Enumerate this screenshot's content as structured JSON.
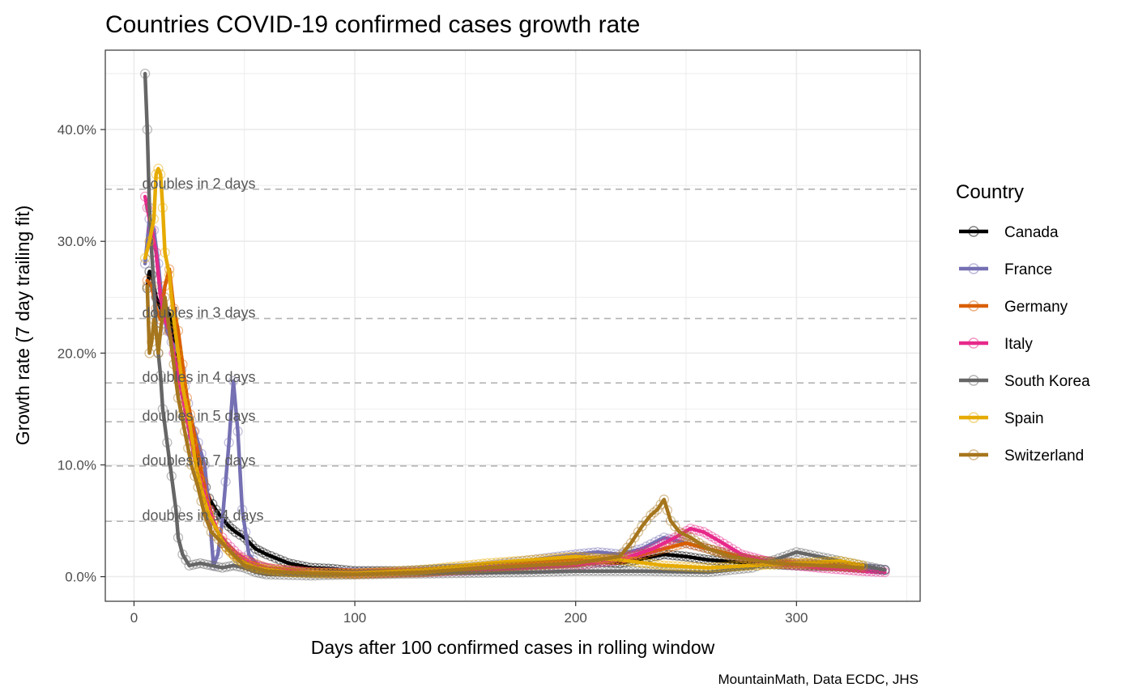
{
  "chart_data": {
    "type": "line",
    "title": "Countries COVID-19 confirmed cases growth rate",
    "xlabel": "Days after 100 confirmed cases in rolling window",
    "ylabel": "Growth rate (7 day trailing fit)",
    "caption": "MountainMath, Data ECDC, JHS",
    "xlim": [
      -13,
      356
    ],
    "ylim": [
      -0.022,
      0.471
    ],
    "x_ticks": [
      0,
      100,
      200,
      300
    ],
    "x_tick_labels": [
      "0",
      "100",
      "200",
      "300"
    ],
    "y_ticks": [
      0,
      0.1,
      0.2,
      0.3,
      0.4
    ],
    "y_tick_labels": [
      "0.0%",
      "10.0%",
      "20.0%",
      "30.0%",
      "40.0%"
    ],
    "grid": true,
    "legend": {
      "title": "Country",
      "position": "right"
    },
    "reference_lines": [
      {
        "label": "doubles in 2 days",
        "y": 0.3466
      },
      {
        "label": "doubles in 3 days",
        "y": 0.231
      },
      {
        "label": "doubles in 4 days",
        "y": 0.1733
      },
      {
        "label": "doubles in 5 days",
        "y": 0.1386
      },
      {
        "label": "doubles in 7 days",
        "y": 0.099
      },
      {
        "label": "doubles in 14 days",
        "y": 0.0495
      }
    ],
    "series": [
      {
        "name": "Canada",
        "color": "#000000",
        "points": [
          [
            6,
            0.258
          ],
          [
            7,
            0.273
          ],
          [
            8,
            0.27
          ],
          [
            10,
            0.25
          ],
          [
            12,
            0.24
          ],
          [
            14,
            0.238
          ],
          [
            16,
            0.235
          ],
          [
            18,
            0.21
          ],
          [
            20,
            0.18
          ],
          [
            22,
            0.16
          ],
          [
            25,
            0.14
          ],
          [
            28,
            0.11
          ],
          [
            31,
            0.09
          ],
          [
            34,
            0.07
          ],
          [
            37,
            0.06
          ],
          [
            40,
            0.052
          ],
          [
            43,
            0.045
          ],
          [
            46,
            0.04
          ],
          [
            50,
            0.035
          ],
          [
            55,
            0.025
          ],
          [
            60,
            0.02
          ],
          [
            70,
            0.012
          ],
          [
            80,
            0.008
          ],
          [
            90,
            0.007
          ],
          [
            100,
            0.005
          ],
          [
            120,
            0.005
          ],
          [
            140,
            0.007
          ],
          [
            160,
            0.008
          ],
          [
            180,
            0.012
          ],
          [
            200,
            0.015
          ],
          [
            220,
            0.012
          ],
          [
            240,
            0.02
          ],
          [
            250,
            0.018
          ],
          [
            260,
            0.015
          ],
          [
            280,
            0.012
          ],
          [
            300,
            0.01
          ],
          [
            320,
            0.009
          ],
          [
            340,
            0.006
          ]
        ]
      },
      {
        "name": "France",
        "color": "#7570b3",
        "points": [
          [
            5,
            0.28
          ],
          [
            7,
            0.32
          ],
          [
            9,
            0.31
          ],
          [
            11,
            0.28
          ],
          [
            13,
            0.24
          ],
          [
            15,
            0.22
          ],
          [
            17,
            0.21
          ],
          [
            20,
            0.2
          ],
          [
            23,
            0.17
          ],
          [
            26,
            0.14
          ],
          [
            29,
            0.12
          ],
          [
            32,
            0.1
          ],
          [
            34,
            0.06
          ],
          [
            36,
            0.01
          ],
          [
            38,
            0.02
          ],
          [
            40,
            0.05
          ],
          [
            43,
            0.12
          ],
          [
            45,
            0.175
          ],
          [
            47,
            0.13
          ],
          [
            49,
            0.06
          ],
          [
            52,
            0.02
          ],
          [
            56,
            0.01
          ],
          [
            65,
            0.005
          ],
          [
            80,
            0.004
          ],
          [
            100,
            0.004
          ],
          [
            130,
            0.005
          ],
          [
            160,
            0.01
          ],
          [
            180,
            0.015
          ],
          [
            200,
            0.02
          ],
          [
            210,
            0.022
          ],
          [
            220,
            0.02
          ],
          [
            230,
            0.025
          ],
          [
            240,
            0.035
          ],
          [
            250,
            0.03
          ],
          [
            260,
            0.025
          ],
          [
            280,
            0.015
          ],
          [
            300,
            0.012
          ],
          [
            320,
            0.01
          ],
          [
            340,
            0.006
          ]
        ]
      },
      {
        "name": "Germany",
        "color": "#d95f02",
        "points": [
          [
            6,
            0.265
          ],
          [
            8,
            0.26
          ],
          [
            10,
            0.24
          ],
          [
            12,
            0.23
          ],
          [
            14,
            0.26
          ],
          [
            16,
            0.275
          ],
          [
            18,
            0.24
          ],
          [
            20,
            0.22
          ],
          [
            22,
            0.19
          ],
          [
            24,
            0.16
          ],
          [
            27,
            0.13
          ],
          [
            30,
            0.1
          ],
          [
            33,
            0.07
          ],
          [
            36,
            0.05
          ],
          [
            40,
            0.03
          ],
          [
            45,
            0.02
          ],
          [
            50,
            0.015
          ],
          [
            60,
            0.008
          ],
          [
            80,
            0.004
          ],
          [
            100,
            0.003
          ],
          [
            130,
            0.004
          ],
          [
            160,
            0.008
          ],
          [
            180,
            0.012
          ],
          [
            200,
            0.015
          ],
          [
            220,
            0.015
          ],
          [
            240,
            0.025
          ],
          [
            250,
            0.03
          ],
          [
            260,
            0.025
          ],
          [
            280,
            0.015
          ],
          [
            300,
            0.012
          ],
          [
            320,
            0.01
          ],
          [
            330,
            0.008
          ]
        ]
      },
      {
        "name": "Italy",
        "color": "#e7298a",
        "points": [
          [
            5,
            0.34
          ],
          [
            6,
            0.33
          ],
          [
            8,
            0.31
          ],
          [
            10,
            0.29
          ],
          [
            12,
            0.25
          ],
          [
            14,
            0.23
          ],
          [
            16,
            0.22
          ],
          [
            18,
            0.2
          ],
          [
            20,
            0.18
          ],
          [
            22,
            0.16
          ],
          [
            25,
            0.13
          ],
          [
            28,
            0.1
          ],
          [
            31,
            0.08
          ],
          [
            34,
            0.06
          ],
          [
            38,
            0.04
          ],
          [
            42,
            0.03
          ],
          [
            47,
            0.02
          ],
          [
            55,
            0.01
          ],
          [
            65,
            0.006
          ],
          [
            80,
            0.004
          ],
          [
            100,
            0.003
          ],
          [
            130,
            0.004
          ],
          [
            160,
            0.006
          ],
          [
            200,
            0.01
          ],
          [
            220,
            0.015
          ],
          [
            235,
            0.025
          ],
          [
            245,
            0.035
          ],
          [
            252,
            0.043
          ],
          [
            258,
            0.04
          ],
          [
            265,
            0.032
          ],
          [
            275,
            0.02
          ],
          [
            290,
            0.012
          ],
          [
            310,
            0.008
          ],
          [
            330,
            0.005
          ],
          [
            340,
            0.004
          ]
        ]
      },
      {
        "name": "South Korea",
        "color": "#666666",
        "points": [
          [
            5,
            0.45
          ],
          [
            6,
            0.4
          ],
          [
            7,
            0.33
          ],
          [
            8,
            0.29
          ],
          [
            9,
            0.26
          ],
          [
            10,
            0.22
          ],
          [
            11,
            0.2
          ],
          [
            12,
            0.18
          ],
          [
            13,
            0.15
          ],
          [
            15,
            0.12
          ],
          [
            17,
            0.09
          ],
          [
            19,
            0.06
          ],
          [
            20,
            0.035
          ],
          [
            22,
            0.02
          ],
          [
            25,
            0.01
          ],
          [
            30,
            0.012
          ],
          [
            35,
            0.01
          ],
          [
            40,
            0.008
          ],
          [
            45,
            0.01
          ],
          [
            50,
            0.008
          ],
          [
            55,
            0.004
          ],
          [
            60,
            0.002
          ],
          [
            80,
            0.001
          ],
          [
            100,
            0.002
          ],
          [
            140,
            0.003
          ],
          [
            180,
            0.004
          ],
          [
            200,
            0.005
          ],
          [
            230,
            0.005
          ],
          [
            260,
            0.004
          ],
          [
            280,
            0.008
          ],
          [
            290,
            0.015
          ],
          [
            300,
            0.022
          ],
          [
            310,
            0.018
          ],
          [
            320,
            0.014
          ],
          [
            330,
            0.01
          ],
          [
            340,
            0.006
          ]
        ]
      },
      {
        "name": "Spain",
        "color": "#e6ab02",
        "points": [
          [
            5,
            0.285
          ],
          [
            7,
            0.3
          ],
          [
            9,
            0.32
          ],
          [
            10,
            0.36
          ],
          [
            11,
            0.365
          ],
          [
            12,
            0.36
          ],
          [
            13,
            0.33
          ],
          [
            14,
            0.29
          ],
          [
            16,
            0.27
          ],
          [
            18,
            0.23
          ],
          [
            20,
            0.2
          ],
          [
            22,
            0.17
          ],
          [
            25,
            0.14
          ],
          [
            28,
            0.1
          ],
          [
            31,
            0.075
          ],
          [
            34,
            0.055
          ],
          [
            38,
            0.04
          ],
          [
            42,
            0.025
          ],
          [
            47,
            0.015
          ],
          [
            55,
            0.008
          ],
          [
            70,
            0.004
          ],
          [
            100,
            0.003
          ],
          [
            130,
            0.006
          ],
          [
            160,
            0.012
          ],
          [
            180,
            0.015
          ],
          [
            200,
            0.018
          ],
          [
            220,
            0.015
          ],
          [
            240,
            0.01
          ],
          [
            260,
            0.008
          ],
          [
            280,
            0.01
          ],
          [
            300,
            0.012
          ],
          [
            320,
            0.014
          ],
          [
            330,
            0.01
          ]
        ]
      },
      {
        "name": "Switzerland",
        "color": "#a6761d",
        "points": [
          [
            6,
            0.26
          ],
          [
            7,
            0.2
          ],
          [
            8,
            0.21
          ],
          [
            9,
            0.23
          ],
          [
            10,
            0.22
          ],
          [
            11,
            0.2
          ],
          [
            12,
            0.22
          ],
          [
            14,
            0.25
          ],
          [
            16,
            0.22
          ],
          [
            18,
            0.19
          ],
          [
            20,
            0.16
          ],
          [
            23,
            0.13
          ],
          [
            26,
            0.1
          ],
          [
            29,
            0.08
          ],
          [
            32,
            0.055
          ],
          [
            35,
            0.04
          ],
          [
            40,
            0.03
          ],
          [
            45,
            0.02
          ],
          [
            50,
            0.01
          ],
          [
            60,
            0.005
          ],
          [
            80,
            0.003
          ],
          [
            100,
            0.002
          ],
          [
            130,
            0.004
          ],
          [
            160,
            0.008
          ],
          [
            180,
            0.01
          ],
          [
            200,
            0.012
          ],
          [
            220,
            0.018
          ],
          [
            225,
            0.03
          ],
          [
            230,
            0.045
          ],
          [
            234,
            0.055
          ],
          [
            237,
            0.06
          ],
          [
            240,
            0.069
          ],
          [
            243,
            0.05
          ],
          [
            247,
            0.04
          ],
          [
            252,
            0.035
          ],
          [
            260,
            0.025
          ],
          [
            270,
            0.018
          ],
          [
            290,
            0.012
          ],
          [
            310,
            0.01
          ],
          [
            330,
            0.008
          ]
        ]
      }
    ]
  }
}
